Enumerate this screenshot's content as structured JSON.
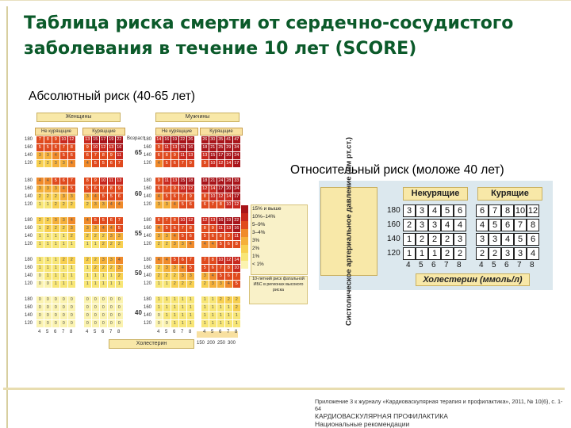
{
  "title": "Таблица риска смерти от сердечно-сосудистого заболевания в течение 10 лет (SCORE)",
  "abs_title": "Абсолютный риск (40-65 лет)",
  "rel_title": "Относительный  риск (моложе 40 лет)",
  "left_chart": {
    "women": "Женщины",
    "men": "Мужчины",
    "nonsmoke": "Не курящщие",
    "smoke": "Курящщие",
    "age_header": "Возраст",
    "ages": [
      "65",
      "60",
      "55",
      "50",
      "40"
    ],
    "bp_rows": [
      "180",
      "160",
      "140",
      "120"
    ],
    "x_ticks": [
      "4",
      "5",
      "6",
      "7",
      "8"
    ],
    "chol_label": "Холестерин",
    "chol_mg": [
      "150",
      "200",
      "250",
      "300"
    ],
    "legend": [
      "15% и выше",
      "10%–14%",
      "5–9%",
      "3–4%",
      "3%",
      "2%",
      "1%",
      "< 1%"
    ],
    "legend_colors": [
      "#a8141a",
      "#c8281e",
      "#e04a1e",
      "#f08a2a",
      "#f5b03a",
      "#f8d050",
      "#f8e676",
      "#fbf3b0"
    ],
    "legend_note": "10-летний риск фатальной ИБС в регионах высокого риска",
    "grid_values": [
      [
        [
          "7",
          "8",
          "9",
          "10",
          "12",
          "13",
          "15",
          "17",
          "19",
          "22",
          "14",
          "16",
          "19",
          "22",
          "26",
          "26",
          "30",
          "35",
          "41",
          "47"
        ],
        [
          "5",
          "5",
          "6",
          "7",
          "8",
          "9",
          "10",
          "12",
          "13",
          "16",
          "9",
          "11",
          "13",
          "15",
          "16",
          "18",
          "21",
          "25",
          "29",
          "34"
        ],
        [
          "3",
          "3",
          "4",
          "5",
          "6",
          "6",
          "7",
          "8",
          "9",
          "11",
          "6",
          "8",
          "9",
          "11",
          "13",
          "13",
          "15",
          "17",
          "20",
          "24"
        ],
        [
          "2",
          "2",
          "3",
          "3",
          "4",
          "4",
          "5",
          "5",
          "6",
          "7",
          "4",
          "5",
          "6",
          "7",
          "9",
          "9",
          "10",
          "12",
          "14",
          "17"
        ]
      ],
      [
        [
          "4",
          "4",
          "5",
          "6",
          "7",
          "8",
          "9",
          "10",
          "11",
          "13",
          "9",
          "11",
          "13",
          "15",
          "18",
          "18",
          "21",
          "24",
          "28",
          "33"
        ],
        [
          "3",
          "3",
          "3",
          "4",
          "5",
          "5",
          "6",
          "7",
          "8",
          "9",
          "6",
          "7",
          "9",
          "10",
          "12",
          "12",
          "14",
          "17",
          "20",
          "24"
        ],
        [
          "2",
          "2",
          "2",
          "3",
          "3",
          "3",
          "4",
          "5",
          "5",
          "6",
          "4",
          "5",
          "6",
          "7",
          "9",
          "8",
          "10",
          "12",
          "14",
          "17"
        ],
        [
          "1",
          "1",
          "2",
          "2",
          "2",
          "2",
          "3",
          "3",
          "4",
          "4",
          "3",
          "3",
          "4",
          "5",
          "6",
          "6",
          "7",
          "8",
          "10",
          "12"
        ]
      ],
      [
        [
          "2",
          "2",
          "3",
          "3",
          "4",
          "4",
          "5",
          "5",
          "6",
          "7",
          "6",
          "7",
          "8",
          "10",
          "12",
          "12",
          "13",
          "16",
          "19",
          "22"
        ],
        [
          "1",
          "2",
          "2",
          "2",
          "3",
          "3",
          "3",
          "4",
          "4",
          "5",
          "4",
          "5",
          "6",
          "7",
          "8",
          "8",
          "9",
          "11",
          "13",
          "16"
        ],
        [
          "1",
          "1",
          "1",
          "1",
          "2",
          "2",
          "2",
          "2",
          "3",
          "3",
          "3",
          "3",
          "4",
          "5",
          "6",
          "5",
          "6",
          "8",
          "9",
          "11"
        ],
        [
          "1",
          "1",
          "1",
          "1",
          "1",
          "1",
          "1",
          "2",
          "2",
          "2",
          "2",
          "2",
          "3",
          "3",
          "4",
          "4",
          "4",
          "5",
          "6",
          "8"
        ]
      ],
      [
        [
          "1",
          "1",
          "1",
          "2",
          "2",
          "2",
          "2",
          "3",
          "3",
          "4",
          "4",
          "4",
          "5",
          "6",
          "7",
          "7",
          "8",
          "10",
          "12",
          "14"
        ],
        [
          "1",
          "1",
          "1",
          "1",
          "1",
          "1",
          "2",
          "2",
          "2",
          "3",
          "2",
          "3",
          "3",
          "4",
          "5",
          "5",
          "6",
          "7",
          "8",
          "10"
        ],
        [
          "0",
          "1",
          "1",
          "1",
          "1",
          "1",
          "1",
          "1",
          "1",
          "2",
          "2",
          "2",
          "2",
          "3",
          "3",
          "3",
          "4",
          "5",
          "6",
          "7"
        ],
        [
          "0",
          "0",
          "1",
          "1",
          "1",
          "1",
          "1",
          "1",
          "1",
          "1",
          "1",
          "1",
          "2",
          "2",
          "2",
          "2",
          "3",
          "3",
          "4",
          "5"
        ]
      ],
      [
        [
          "0",
          "0",
          "0",
          "0",
          "0",
          "0",
          "0",
          "0",
          "0",
          "0",
          "1",
          "1",
          "1",
          "1",
          "1",
          "1",
          "1",
          "2",
          "2",
          "2"
        ],
        [
          "0",
          "0",
          "0",
          "0",
          "0",
          "0",
          "0",
          "0",
          "0",
          "0",
          "1",
          "1",
          "1",
          "1",
          "1",
          "1",
          "1",
          "1",
          "1",
          "2"
        ],
        [
          "0",
          "0",
          "0",
          "0",
          "0",
          "0",
          "0",
          "0",
          "0",
          "0",
          "0",
          "1",
          "1",
          "1",
          "1",
          "1",
          "1",
          "1",
          "1",
          "1"
        ],
        [
          "0",
          "0",
          "0",
          "0",
          "0",
          "0",
          "0",
          "0",
          "0",
          "0",
          "0",
          "0",
          "1",
          "1",
          "1",
          "1",
          "1",
          "1",
          "1",
          "1"
        ]
      ]
    ]
  },
  "right_table": {
    "y_label": "Систолическое артериальное давление (мм рт.ст.)",
    "nonsmoke": "Некурящие",
    "smoke": "Курящие",
    "bp_rows": [
      "180",
      "160",
      "140",
      "120"
    ],
    "nonsmoke_values": [
      [
        "3",
        "3",
        "4",
        "5",
        "6"
      ],
      [
        "2",
        "3",
        "3",
        "4",
        "4"
      ],
      [
        "1",
        "2",
        "2",
        "2",
        "3"
      ],
      [
        "1",
        "1",
        "1",
        "2",
        "2"
      ]
    ],
    "smoke_values": [
      [
        "6",
        "7",
        "8",
        "10",
        "12"
      ],
      [
        "4",
        "5",
        "6",
        "7",
        "8"
      ],
      [
        "3",
        "3",
        "4",
        "5",
        "6"
      ],
      [
        "2",
        "2",
        "3",
        "3",
        "4"
      ]
    ],
    "x_ticks": [
      "4",
      "5",
      "6",
      "7",
      "8"
    ],
    "chol_label": "Холестерин (ммоль/л)"
  },
  "footer": {
    "line1": "Приложение 3 к журналу «Кардиоваскулярная терапия и профилактика», 2011, № 10(6), с. 1-64",
    "line2": "КАРДИОВАСКУЛЯРНАЯ ПРОФИЛАКТИКА",
    "line3": "Национальные рекомендации"
  }
}
